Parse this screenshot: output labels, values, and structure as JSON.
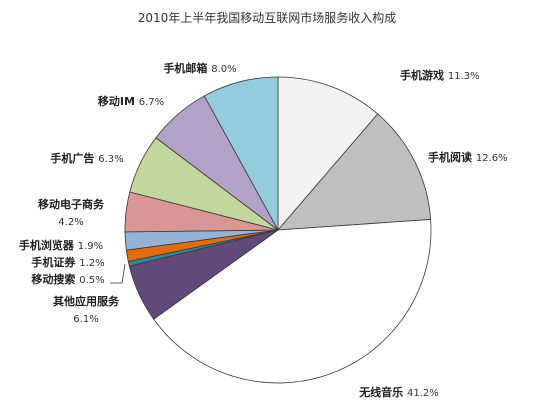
{
  "chart_data": {
    "type": "pie",
    "title": "2010年上半年我国移动互联网市场服务收入构成",
    "slices": [
      {
        "label": "手机游戏",
        "value": 11.3,
        "display": "11.3%",
        "color": "#f2f2f2"
      },
      {
        "label": "手机阅读",
        "value": 12.6,
        "display": "12.6%",
        "color": "#bfbfbf"
      },
      {
        "label": "无线音乐",
        "value": 41.2,
        "display": "41.2%",
        "color": "#ffffff"
      },
      {
        "label": "其他应用服务",
        "value": 6.1,
        "display": "6.1%",
        "color": "#604a7b"
      },
      {
        "label": "移动搜索",
        "value": 0.5,
        "display": "0.5%",
        "color": "#31859c"
      },
      {
        "label": "手机证券",
        "value": 1.2,
        "display": "1.2%",
        "color": "#e46c0a"
      },
      {
        "label": "手机浏览器",
        "value": 1.9,
        "display": "1.9%",
        "color": "#95b3d7"
      },
      {
        "label": "移动电子商务",
        "value": 4.2,
        "display": "4.2%",
        "color": "#d99694"
      },
      {
        "label": "手机广告",
        "value": 6.3,
        "display": "6.3%",
        "color": "#c3d69b"
      },
      {
        "label": "移动IM",
        "value": 6.7,
        "display": "6.7%",
        "color": "#b3a2c7"
      },
      {
        "label": "手机邮箱",
        "value": 8.0,
        "display": "8.0%",
        "color": "#93cddd"
      }
    ]
  }
}
